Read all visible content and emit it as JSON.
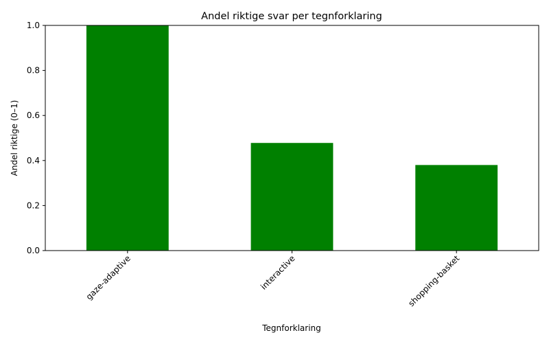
{
  "chart_data": {
    "type": "bar",
    "title": "Andel riktige svar per tegnforklaring",
    "xlabel": "Tegnforklaring",
    "ylabel": "Andel riktige (0–1)",
    "categories": [
      "gaze-adaptive",
      "interactive",
      "shopping-basket"
    ],
    "values": [
      1.0,
      0.478,
      0.38
    ],
    "ylim": [
      0,
      1.0
    ],
    "yticks": [
      "0.0",
      "0.2",
      "0.4",
      "0.6",
      "0.8",
      "1.0"
    ],
    "bar_color": "#008000",
    "grid": false,
    "legend": "none"
  }
}
